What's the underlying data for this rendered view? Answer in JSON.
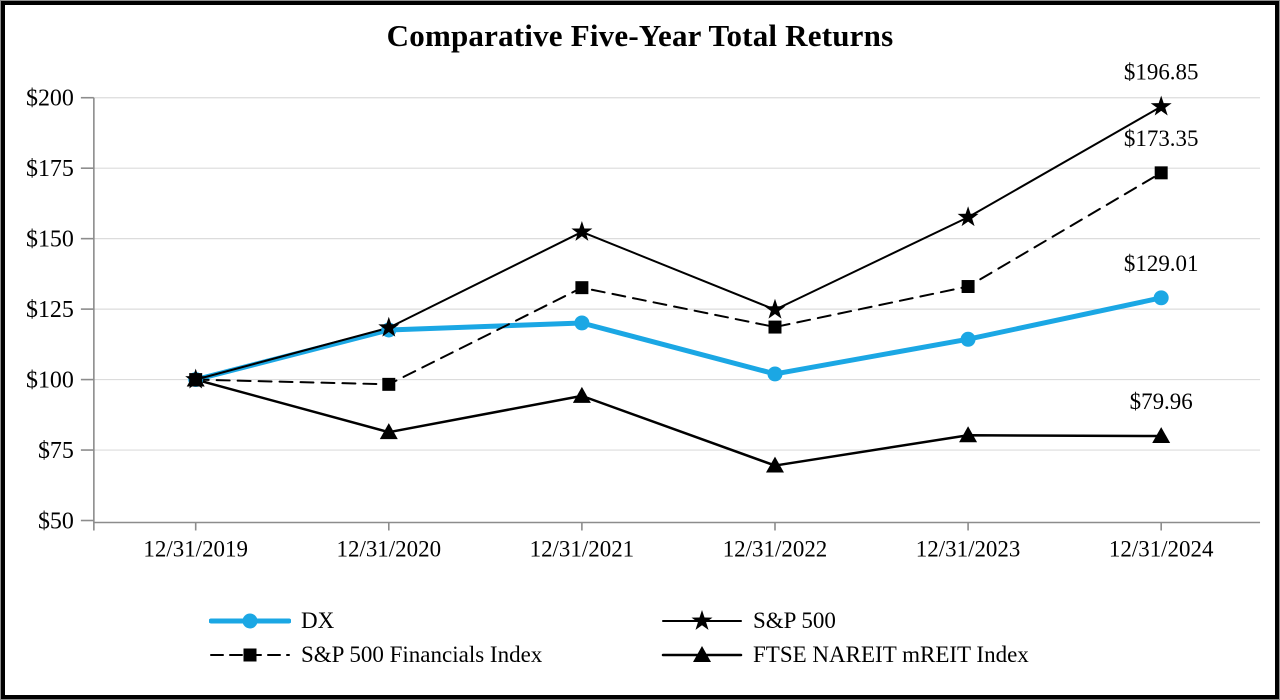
{
  "title": "Comparative Five-Year Total Returns",
  "colors": {
    "dx_blue": "#1BA7E4",
    "black": "#000000",
    "axis_gray": "#8C8C8C",
    "gridline_gray": "#DCDCDC",
    "background": "#FFFFFF"
  },
  "chart_data": {
    "type": "line",
    "title": "Comparative Five-Year Total Returns",
    "x_labels": [
      "12/31/2019",
      "12/31/2020",
      "12/31/2021",
      "12/31/2022",
      "12/31/2023",
      "12/31/2024"
    ],
    "ylim": [
      50,
      200
    ],
    "y_ticks": {
      "labels": [
        "$200",
        "$175",
        "$150",
        "$125",
        "$100",
        "$75",
        "$50"
      ],
      "values": [
        200,
        175,
        150,
        125,
        100,
        75,
        50
      ]
    },
    "grid": "horizontal light gridlines at each $25",
    "legend_position": "bottom, two columns",
    "series": [
      {
        "name": "DX",
        "color": "#1BA7E4",
        "marker": "circle",
        "line_style": "solid",
        "line_width": 5,
        "values": [
          100,
          117.6,
          120.1,
          102.0,
          114.3,
          129.01
        ],
        "end_label": "$129.01"
      },
      {
        "name": "S&P 500",
        "color": "#000000",
        "marker": "star",
        "line_style": "solid",
        "line_width": 2,
        "values": [
          100,
          118.4,
          152.39,
          124.79,
          157.59,
          196.85
        ],
        "end_label": "$196.85"
      },
      {
        "name": "S&P 500 Financials Index",
        "color": "#000000",
        "marker": "square",
        "line_style": "dashed",
        "line_width": 2,
        "values": [
          100,
          98.31,
          132.61,
          118.63,
          133.02,
          173.35
        ],
        "end_label": "$173.35"
      },
      {
        "name": "FTSE NAREIT mREIT Index",
        "color": "#000000",
        "marker": "triangle",
        "line_style": "solid",
        "line_width": 2.5,
        "values": [
          100,
          81.35,
          94.21,
          69.5,
          80.25,
          79.96
        ],
        "end_label": "$79.96"
      }
    ]
  }
}
